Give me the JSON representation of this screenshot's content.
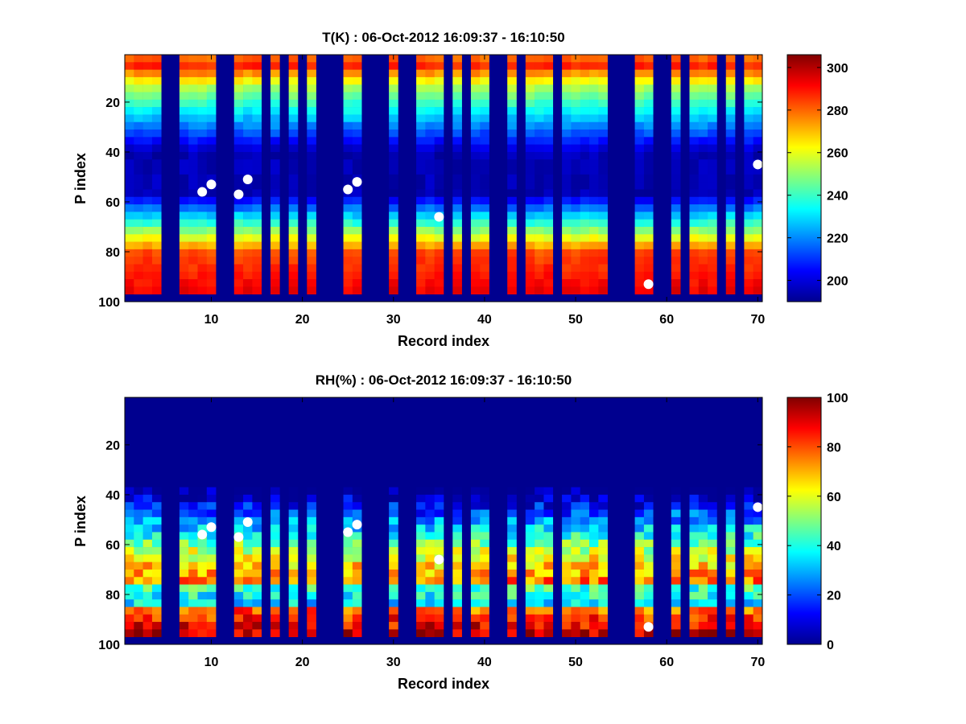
{
  "chart_data": [
    {
      "type": "heatmap",
      "title": "T(K) : 06-Oct-2012 16:09:37 - 16:10:50",
      "xlabel": "Record index",
      "ylabel": "P index",
      "xlim": [
        0.5,
        70.5
      ],
      "ylim": [
        1,
        100
      ],
      "y_reversed": true,
      "xticks": [
        10,
        20,
        30,
        40,
        50,
        60,
        70
      ],
      "yticks": [
        20,
        40,
        60,
        80,
        100
      ],
      "colorbar": {
        "range": [
          190,
          306
        ],
        "ticks": [
          200,
          220,
          240,
          260,
          280,
          300
        ],
        "colormap": "jet"
      },
      "active_records": [
        1,
        2,
        3,
        4,
        7,
        8,
        9,
        10,
        13,
        14,
        15,
        17,
        19,
        21,
        25,
        26,
        30,
        33,
        34,
        35,
        37,
        39,
        40,
        43,
        45,
        46,
        47,
        49,
        50,
        51,
        52,
        53,
        57,
        58,
        61,
        63,
        64,
        65,
        67,
        69,
        70
      ],
      "profile": "temperature, warm (~280-290) near P 5 and P 80-97, cold (~195-200) around P 40-55",
      "markers": [
        {
          "x": 9,
          "y": 56
        },
        {
          "x": 10,
          "y": 53
        },
        {
          "x": 13,
          "y": 57
        },
        {
          "x": 14,
          "y": 51
        },
        {
          "x": 25,
          "y": 55
        },
        {
          "x": 26,
          "y": 52
        },
        {
          "x": 35,
          "y": 66
        },
        {
          "x": 58,
          "y": 93
        },
        {
          "x": 70,
          "y": 45
        }
      ]
    },
    {
      "type": "heatmap",
      "title": "RH(%) : 06-Oct-2012 16:09:37 - 16:10:50",
      "xlabel": "Record index",
      "ylabel": "P index",
      "xlim": [
        0.5,
        70.5
      ],
      "ylim": [
        1,
        100
      ],
      "y_reversed": true,
      "xticks": [
        10,
        20,
        30,
        40,
        50,
        60,
        70
      ],
      "yticks": [
        20,
        40,
        60,
        80,
        100
      ],
      "colorbar": {
        "range": [
          0,
          100
        ],
        "ticks": [
          0,
          20,
          40,
          60,
          80,
          100
        ],
        "colormap": "jet"
      },
      "active_records": [
        1,
        2,
        3,
        4,
        7,
        8,
        9,
        10,
        13,
        14,
        15,
        17,
        19,
        21,
        25,
        26,
        30,
        33,
        34,
        35,
        37,
        39,
        40,
        43,
        45,
        46,
        47,
        49,
        50,
        51,
        52,
        53,
        57,
        58,
        61,
        63,
        64,
        65,
        67,
        69,
        70
      ],
      "profile": "relative humidity, ~0 above P 38, rising to 60-80 near P 65-75 and ~95 near P 88-95",
      "markers": [
        {
          "x": 9,
          "y": 56
        },
        {
          "x": 10,
          "y": 53
        },
        {
          "x": 13,
          "y": 57
        },
        {
          "x": 14,
          "y": 51
        },
        {
          "x": 25,
          "y": 55
        },
        {
          "x": 26,
          "y": 52
        },
        {
          "x": 35,
          "y": 66
        },
        {
          "x": 58,
          "y": 93
        },
        {
          "x": 70,
          "y": 45
        }
      ]
    }
  ]
}
